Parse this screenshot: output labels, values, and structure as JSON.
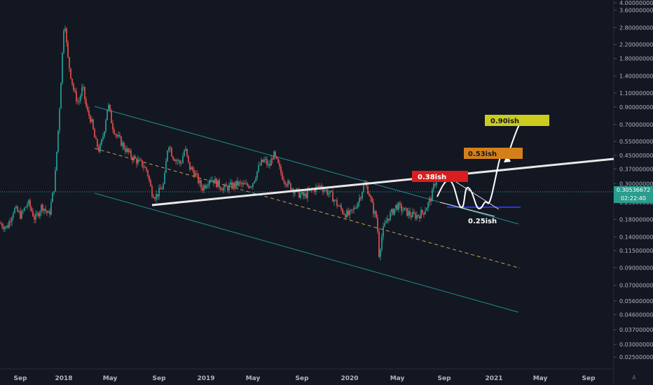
{
  "chart_data": {
    "type": "candlestick",
    "scale": "log",
    "ylim": [
      0.022,
      4.0
    ],
    "y_ticks": [
      "4.00000000",
      "3.60000000",
      "2.80000000",
      "2.20000000",
      "1.80000000",
      "1.40000000",
      "1.10000000",
      "0.90000000",
      "0.70000000",
      "0.55000000",
      "0.45000000",
      "0.37000000",
      "0.30000000",
      "0.23000000",
      "0.18000000",
      "0.14000000",
      "0.11500000",
      "0.09000000",
      "0.07000000",
      "0.05600000",
      "0.04600000",
      "0.03700000",
      "0.03000000",
      "0.02500000"
    ],
    "x_ticks": [
      "Sep",
      "2018",
      "May",
      "Sep",
      "2019",
      "May",
      "Sep",
      "2020",
      "May",
      "Sep",
      "2021",
      "May",
      "Sep"
    ],
    "current_price": "0.30536672",
    "countdown": "02:22:40",
    "annotations": [
      {
        "text": "0.90ish",
        "value": 0.9,
        "color": "#cccc1f"
      },
      {
        "text": "0.53ish",
        "value": 0.53,
        "color": "#d4801a"
      },
      {
        "text": "0.38ish",
        "value": 0.38,
        "color": "#d81e1e"
      },
      {
        "text": "0.25ish",
        "value": 0.25,
        "color": "#ffffff"
      }
    ],
    "price_path": [
      [
        0,
        0.17
      ],
      [
        10,
        0.16
      ],
      [
        20,
        0.21
      ],
      [
        30,
        0.19
      ],
      [
        40,
        0.23
      ],
      [
        50,
        0.18
      ],
      [
        60,
        0.22
      ],
      [
        70,
        0.19
      ],
      [
        78,
        0.3
      ],
      [
        84,
        0.75
      ],
      [
        88,
        1.6
      ],
      [
        92,
        3.4
      ],
      [
        96,
        1.9
      ],
      [
        100,
        1.5
      ],
      [
        106,
        1.1
      ],
      [
        112,
        0.95
      ],
      [
        118,
        1.2
      ],
      [
        124,
        0.85
      ],
      [
        130,
        0.75
      ],
      [
        136,
        0.55
      ],
      [
        142,
        0.48
      ],
      [
        148,
        0.62
      ],
      [
        154,
        0.95
      ],
      [
        160,
        0.7
      ],
      [
        166,
        0.6
      ],
      [
        172,
        0.55
      ],
      [
        178,
        0.5
      ],
      [
        186,
        0.45
      ],
      [
        194,
        0.42
      ],
      [
        202,
        0.4
      ],
      [
        210,
        0.36
      ],
      [
        216,
        0.27
      ],
      [
        222,
        0.25
      ],
      [
        228,
        0.27
      ],
      [
        234,
        0.3
      ],
      [
        240,
        0.55
      ],
      [
        246,
        0.45
      ],
      [
        252,
        0.42
      ],
      [
        258,
        0.4
      ],
      [
        264,
        0.5
      ],
      [
        270,
        0.38
      ],
      [
        276,
        0.36
      ],
      [
        282,
        0.32
      ],
      [
        288,
        0.28
      ],
      [
        294,
        0.3
      ],
      [
        300,
        0.33
      ],
      [
        310,
        0.3
      ],
      [
        320,
        0.28
      ],
      [
        330,
        0.29
      ],
      [
        340,
        0.3
      ],
      [
        350,
        0.29
      ],
      [
        360,
        0.3
      ],
      [
        366,
        0.35
      ],
      [
        372,
        0.4
      ],
      [
        378,
        0.42
      ],
      [
        384,
        0.38
      ],
      [
        390,
        0.46
      ],
      [
        396,
        0.4
      ],
      [
        402,
        0.34
      ],
      [
        410,
        0.3
      ],
      [
        418,
        0.28
      ],
      [
        426,
        0.26
      ],
      [
        434,
        0.25
      ],
      [
        442,
        0.27
      ],
      [
        450,
        0.28
      ],
      [
        458,
        0.29
      ],
      [
        466,
        0.27
      ],
      [
        474,
        0.25
      ],
      [
        482,
        0.22
      ],
      [
        490,
        0.2
      ],
      [
        498,
        0.19
      ],
      [
        506,
        0.21
      ],
      [
        514,
        0.25
      ],
      [
        520,
        0.3
      ],
      [
        526,
        0.27
      ],
      [
        532,
        0.21
      ],
      [
        538,
        0.18
      ],
      [
        541,
        0.11
      ],
      [
        546,
        0.15
      ],
      [
        552,
        0.18
      ],
      [
        560,
        0.2
      ],
      [
        566,
        0.22
      ],
      [
        572,
        0.21
      ],
      [
        580,
        0.2
      ],
      [
        588,
        0.19
      ],
      [
        596,
        0.19
      ],
      [
        604,
        0.2
      ],
      [
        610,
        0.22
      ],
      [
        616,
        0.25
      ],
      [
        620,
        0.3
      ],
      [
        624,
        0.33
      ]
    ]
  }
}
